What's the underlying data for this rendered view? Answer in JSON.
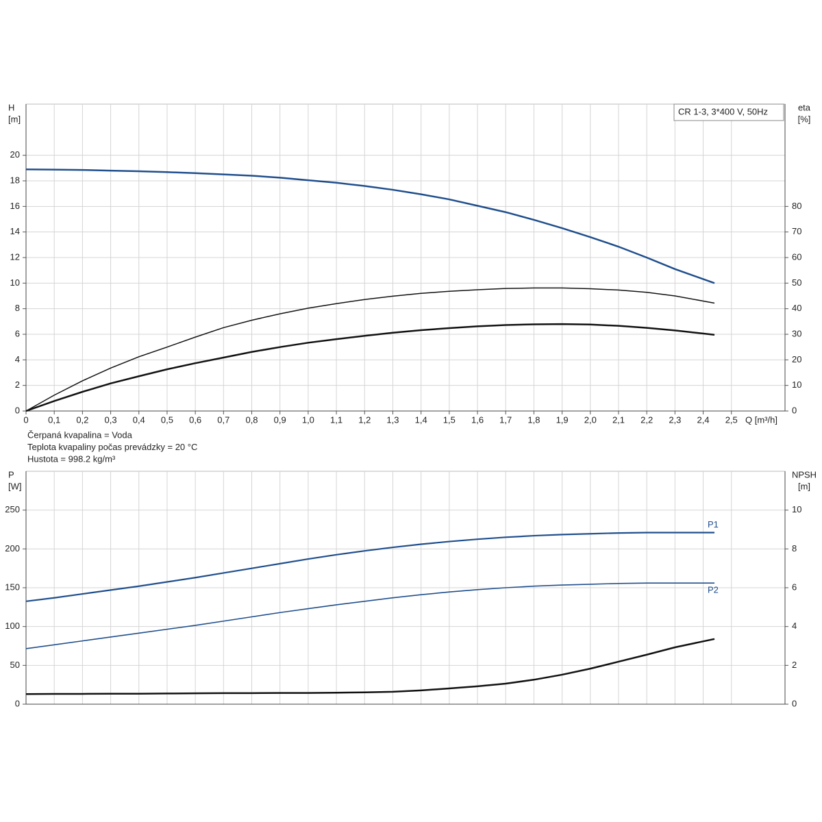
{
  "chart_data": [
    {
      "type": "line",
      "title": "CR 1-3, 3*400 V, 50Hz",
      "ylabel": [
        "H",
        "[m]"
      ],
      "y2label": [
        "eta",
        "[%]"
      ],
      "xlabel": "Q [m³/h]",
      "notes": [
        "Čerpaná kvapalina = Voda",
        "Teplota kvapaliny počas prevádzky = 20 °C",
        "Hustota = 998.2 kg/m³"
      ],
      "xlim": [
        0,
        2.69
      ],
      "xticks": [
        0,
        {
          "value": 0.1,
          "label": "0,1"
        },
        {
          "value": 0.2,
          "label": "0,2"
        },
        {
          "value": 0.3,
          "label": "0,3"
        },
        {
          "value": 0.4,
          "label": "0,4"
        },
        {
          "value": 0.5,
          "label": "0,5"
        },
        {
          "value": 0.6,
          "label": "0,6"
        },
        {
          "value": 0.7,
          "label": "0,7"
        },
        {
          "value": 0.8,
          "label": "0,8"
        },
        {
          "value": 0.9,
          "label": "0,9"
        },
        {
          "value": 1.0,
          "label": "1,0"
        },
        {
          "value": 1.1,
          "label": "1,1"
        },
        {
          "value": 1.2,
          "label": "1,2"
        },
        {
          "value": 1.3,
          "label": "1,3"
        },
        {
          "value": 1.4,
          "label": "1,4"
        },
        {
          "value": 1.5,
          "label": "1,5"
        },
        {
          "value": 1.6,
          "label": "1,6"
        },
        {
          "value": 1.7,
          "label": "1,7"
        },
        {
          "value": 1.8,
          "label": "1,8"
        },
        {
          "value": 1.9,
          "label": "1,9"
        },
        {
          "value": 2.0,
          "label": "2,0"
        },
        {
          "value": 2.1,
          "label": "2,1"
        },
        {
          "value": 2.2,
          "label": "2,2"
        },
        {
          "value": 2.3,
          "label": "2,3"
        },
        {
          "value": 2.4,
          "label": "2,4"
        },
        {
          "value": 2.5,
          "label": "2,5"
        }
      ],
      "ylim": [
        0,
        24
      ],
      "yticks": [
        0,
        2,
        4,
        6,
        8,
        10,
        12,
        14,
        16,
        18,
        20
      ],
      "y2lim": [
        0,
        120
      ],
      "y2ticks": [
        0,
        10,
        20,
        30,
        40,
        50,
        60,
        70,
        80
      ],
      "grid": true,
      "x": [
        0,
        0.1,
        0.2,
        0.3,
        0.4,
        0.5,
        0.6,
        0.7,
        0.8,
        0.9,
        1.0,
        1.1,
        1.2,
        1.3,
        1.4,
        1.5,
        1.6,
        1.7,
        1.8,
        1.9,
        2.0,
        2.1,
        2.2,
        2.3,
        2.44
      ],
      "series": [
        {
          "color": "#1f4e8c",
          "values": [
            18.9,
            18.88,
            18.85,
            18.8,
            18.75,
            18.68,
            18.6,
            18.5,
            18.4,
            18.25,
            18.05,
            17.85,
            17.6,
            17.3,
            16.95,
            16.55,
            16.05,
            15.55,
            14.95,
            14.3,
            13.6,
            12.85,
            12.0,
            11.1,
            10.0
          ]
        },
        {
          "color": "#111111",
          "axis": "y2",
          "values": [
            0,
            6.2,
            11.8,
            16.8,
            21.2,
            25.0,
            28.9,
            32.6,
            35.5,
            38.0,
            40.2,
            42.0,
            43.6,
            44.9,
            46.0,
            46.8,
            47.4,
            47.9,
            48.1,
            48.1,
            47.8,
            47.3,
            46.4,
            45.0,
            42.2
          ]
        },
        {
          "color": "#111111",
          "axis": "y2",
          "values": [
            0,
            3.9,
            7.5,
            10.8,
            13.6,
            16.3,
            18.7,
            20.9,
            23.1,
            25.0,
            26.7,
            28.1,
            29.4,
            30.6,
            31.6,
            32.4,
            33.1,
            33.6,
            33.9,
            34.0,
            33.8,
            33.3,
            32.5,
            31.5,
            29.8
          ]
        }
      ]
    },
    {
      "type": "line",
      "ylabel": [
        "P",
        "[W]"
      ],
      "y2label": [
        "NPSH",
        "[m]"
      ],
      "xlim": [
        0,
        2.69
      ],
      "ylim": [
        0,
        300
      ],
      "yticks": [
        0,
        50,
        100,
        150,
        200,
        250
      ],
      "y2lim": [
        0,
        12
      ],
      "y2ticks": [
        0,
        2,
        4,
        6,
        8,
        10
      ],
      "grid": true,
      "x": [
        0,
        0.1,
        0.2,
        0.3,
        0.4,
        0.5,
        0.6,
        0.7,
        0.8,
        0.9,
        1.0,
        1.1,
        1.2,
        1.3,
        1.4,
        1.5,
        1.6,
        1.7,
        1.8,
        1.9,
        2.0,
        2.1,
        2.2,
        2.3,
        2.44
      ],
      "series": [
        {
          "name": "P1",
          "color": "#1f4e8c",
          "values": [
            132.5,
            137,
            142,
            147,
            152,
            157.5,
            163,
            169,
            175,
            181,
            187,
            192.5,
            197.5,
            202,
            206,
            209.5,
            212.5,
            215,
            217,
            218.5,
            219.5,
            220.5,
            221,
            221,
            221
          ]
        },
        {
          "name": "P2",
          "color": "#1f4e8c",
          "values": [
            71.5,
            76.5,
            81.5,
            86.5,
            91.5,
            96.5,
            101.5,
            107,
            112.5,
            118,
            123,
            128,
            132.5,
            137,
            141,
            144.5,
            147.5,
            150,
            152,
            153.5,
            154.5,
            155.5,
            156,
            156,
            156
          ]
        },
        {
          "color": "#111111",
          "axis": "y2",
          "values": [
            0.52,
            0.53,
            0.53,
            0.54,
            0.54,
            0.55,
            0.56,
            0.57,
            0.57,
            0.58,
            0.58,
            0.59,
            0.61,
            0.64,
            0.71,
            0.81,
            0.92,
            1.06,
            1.26,
            1.52,
            1.83,
            2.19,
            2.55,
            2.93,
            3.36
          ]
        }
      ]
    }
  ]
}
